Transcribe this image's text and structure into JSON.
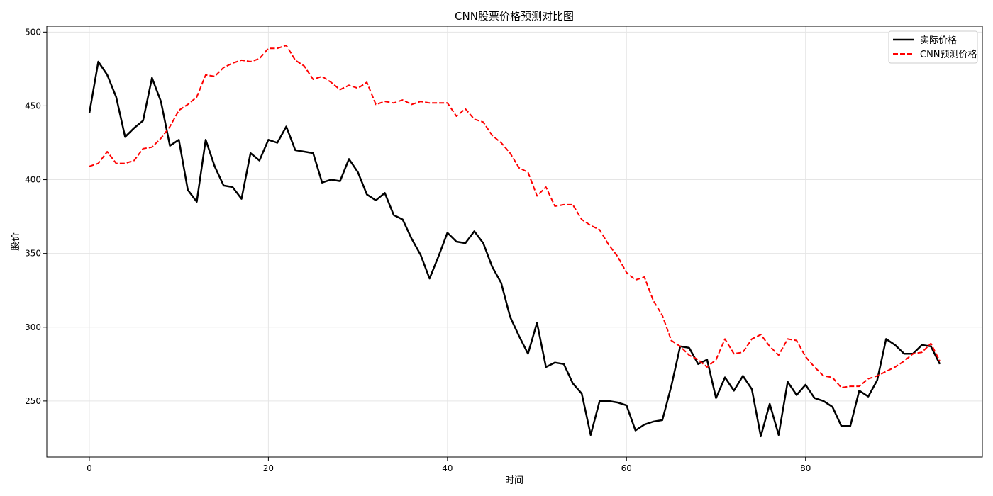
{
  "chart_data": {
    "type": "line",
    "title": "CNN股票价格预测对比图",
    "xlabel": "时间",
    "ylabel": "股价",
    "xlim": [
      -4.75,
      99.75
    ],
    "ylim": [
      212,
      504
    ],
    "x_ticks": [
      0,
      20,
      40,
      60,
      80
    ],
    "y_ticks": [
      250,
      300,
      350,
      400,
      450,
      500
    ],
    "grid": true,
    "legend_position": "top-right",
    "series": [
      {
        "name": "实际价格",
        "color": "#000000",
        "style": "solid",
        "values": [
          445,
          480,
          471,
          456,
          429,
          435,
          440,
          469,
          453,
          423,
          427,
          393,
          385,
          427,
          409,
          396,
          395,
          387,
          418,
          413,
          427,
          425,
          436,
          420,
          419,
          418,
          398,
          400,
          399,
          414,
          405,
          390,
          386,
          391,
          376,
          373,
          360,
          349,
          333,
          348,
          364,
          358,
          357,
          365,
          357,
          341,
          330,
          307,
          294,
          282,
          303,
          273,
          276,
          275,
          262,
          255,
          227,
          250,
          250,
          249,
          247,
          230,
          234,
          236,
          237,
          260,
          287,
          286,
          275,
          278,
          252,
          266,
          257,
          267,
          258,
          226,
          248,
          227,
          263,
          254,
          261,
          252,
          250,
          246,
          233,
          233,
          257,
          253,
          264,
          292,
          288,
          282,
          282,
          288,
          287,
          275
        ]
      },
      {
        "name": "CNN预测价格",
        "color": "#ff0000",
        "style": "dashed",
        "values": [
          409,
          411,
          419,
          411,
          411,
          413,
          421,
          422,
          428,
          436,
          447,
          451,
          456,
          471,
          470,
          476,
          479,
          481,
          480,
          482,
          489,
          489,
          491,
          481,
          477,
          468,
          470,
          466,
          461,
          464,
          462,
          466,
          451,
          453,
          452,
          454,
          451,
          453,
          452,
          452,
          452,
          443,
          448,
          441,
          439,
          430,
          425,
          418,
          408,
          405,
          389,
          395,
          382,
          383,
          383,
          373,
          369,
          366,
          356,
          348,
          337,
          332,
          334,
          318,
          308,
          291,
          287,
          281,
          278,
          273,
          278,
          292,
          282,
          283,
          292,
          295,
          287,
          281,
          292,
          291,
          280,
          273,
          267,
          266,
          259,
          260,
          260,
          265,
          267,
          270,
          273,
          277,
          282,
          283,
          289,
          277
        ]
      }
    ]
  }
}
